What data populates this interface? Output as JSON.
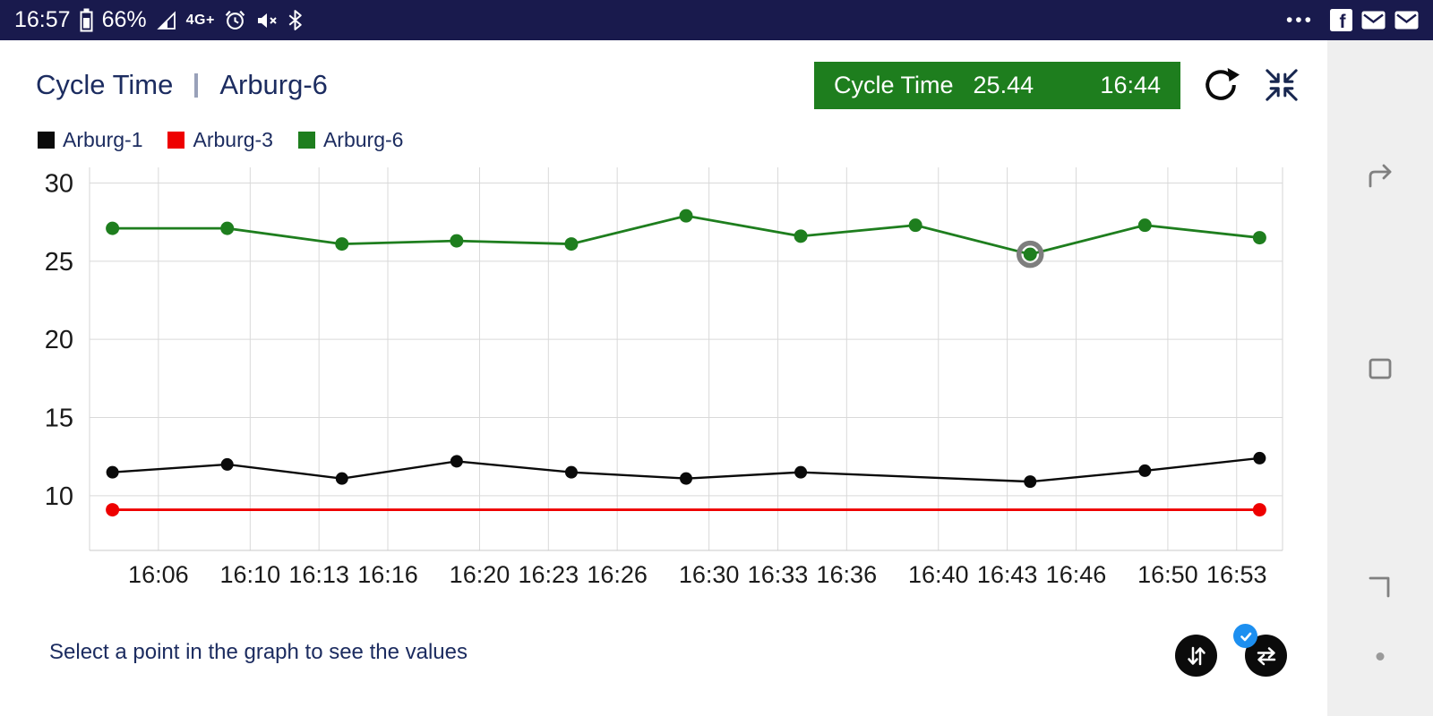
{
  "status_bar": {
    "time": "16:57",
    "battery_percent": "66%",
    "network_label": "4G+",
    "more_label": "•••"
  },
  "header": {
    "title": "Cycle Time",
    "subtitle": "Arburg-6",
    "badge": {
      "label": "Cycle Time",
      "value": "25.44",
      "time": "16:44"
    }
  },
  "legend": [
    {
      "label": "Arburg-1",
      "color": "#0a0a0a"
    },
    {
      "label": "Arburg-3",
      "color": "#ee0000"
    },
    {
      "label": "Arburg-6",
      "color": "#1e7e1e"
    }
  ],
  "chart_data": {
    "type": "line",
    "title": "Cycle Time",
    "xlabel": "",
    "ylabel": "",
    "x_range": [
      "16:03",
      "16:55"
    ],
    "ylim": [
      6.5,
      31
    ],
    "y_ticks": [
      10,
      15,
      20,
      25,
      30
    ],
    "x_ticks": [
      "16:06",
      "16:10",
      "16:13",
      "16:16",
      "16:20",
      "16:23",
      "16:26",
      "16:30",
      "16:33",
      "16:36",
      "16:40",
      "16:43",
      "16:46",
      "16:50",
      "16:53"
    ],
    "grid": true,
    "legend_position": "top-left",
    "selected_point": {
      "series": "Arburg-6",
      "time": "16:44",
      "value": 25.44
    },
    "series": [
      {
        "name": "Arburg-1",
        "color": "#0a0a0a",
        "width": 2.4,
        "dot_radius": 7,
        "points": [
          {
            "t": "16:04",
            "v": 11.5
          },
          {
            "t": "16:09",
            "v": 12.0
          },
          {
            "t": "16:14",
            "v": 11.1
          },
          {
            "t": "16:19",
            "v": 12.2
          },
          {
            "t": "16:24",
            "v": 11.5
          },
          {
            "t": "16:29",
            "v": 11.1
          },
          {
            "t": "16:34",
            "v": 11.5
          },
          {
            "t": "16:44",
            "v": 10.9
          },
          {
            "t": "16:49",
            "v": 11.6
          },
          {
            "t": "16:54",
            "v": 12.4
          }
        ]
      },
      {
        "name": "Arburg-3",
        "color": "#ee0000",
        "width": 2.8,
        "dot_radius": 7.5,
        "points": [
          {
            "t": "16:04",
            "v": 9.1
          },
          {
            "t": "16:54",
            "v": 9.1
          }
        ]
      },
      {
        "name": "Arburg-6",
        "color": "#1e7e1e",
        "width": 2.8,
        "dot_radius": 7.5,
        "selected_index": 8,
        "points": [
          {
            "t": "16:04",
            "v": 27.1
          },
          {
            "t": "16:09",
            "v": 27.1
          },
          {
            "t": "16:14",
            "v": 26.1
          },
          {
            "t": "16:19",
            "v": 26.3
          },
          {
            "t": "16:24",
            "v": 26.1
          },
          {
            "t": "16:29",
            "v": 27.9
          },
          {
            "t": "16:34",
            "v": 26.6
          },
          {
            "t": "16:39",
            "v": 27.3
          },
          {
            "t": "16:44",
            "v": 25.44
          },
          {
            "t": "16:49",
            "v": 27.3
          },
          {
            "t": "16:54",
            "v": 26.5
          }
        ]
      }
    ]
  },
  "footer": {
    "hint": "Select a point in the graph to see the values"
  }
}
